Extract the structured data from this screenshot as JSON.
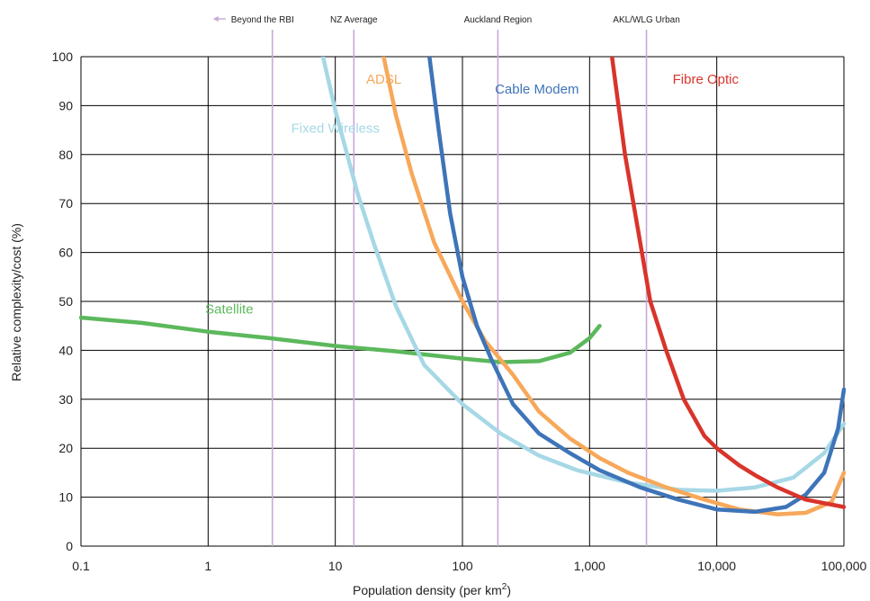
{
  "chart_data": {
    "type": "line",
    "title": "",
    "xlabel": "Population density (per km",
    "xlabel_superscript": "2",
    "xlabel_suffix": ")",
    "ylabel": "Relative complexity/cost (%)",
    "x_scale": "log",
    "xlim": [
      0.1,
      100000
    ],
    "ylim": [
      0,
      100
    ],
    "grid": true,
    "x_ticks": [
      {
        "value": 0.1,
        "label": "0.1"
      },
      {
        "value": 1,
        "label": "1"
      },
      {
        "value": 10,
        "label": "10"
      },
      {
        "value": 100,
        "label": "100"
      },
      {
        "value": 1000,
        "label": "1,000"
      },
      {
        "value": 10000,
        "label": "10,000"
      },
      {
        "value": 100000,
        "label": "100,000"
      }
    ],
    "y_ticks": [
      {
        "value": 0,
        "label": "0"
      },
      {
        "value": 10,
        "label": "10"
      },
      {
        "value": 20,
        "label": "20"
      },
      {
        "value": 30,
        "label": "30"
      },
      {
        "value": 40,
        "label": "40"
      },
      {
        "value": 50,
        "label": "50"
      },
      {
        "value": 60,
        "label": "60"
      },
      {
        "value": 70,
        "label": "70"
      },
      {
        "value": 80,
        "label": "80"
      },
      {
        "value": 90,
        "label": "90"
      },
      {
        "value": 100,
        "label": "100"
      }
    ],
    "reference_lines": [
      {
        "label": "Beyond the RBI",
        "x": 3.2,
        "arrow": true
      },
      {
        "label": "NZ Average",
        "x": 14
      },
      {
        "label": "Auckland Region",
        "x": 190
      },
      {
        "label": "AKL/WLG Urban",
        "x": 2800
      }
    ],
    "reference_line_color": "#c8a9d8",
    "series": [
      {
        "name": "Satellite",
        "color": "#5cb85c",
        "label_at": {
          "x": 0.95,
          "y": 47.5
        },
        "points": [
          [
            0.1,
            46.7
          ],
          [
            0.3,
            45.6
          ],
          [
            1,
            43.8
          ],
          [
            3,
            42.5
          ],
          [
            10,
            40.9
          ],
          [
            30,
            39.8
          ],
          [
            100,
            38.3
          ],
          [
            200,
            37.6
          ],
          [
            400,
            37.8
          ],
          [
            700,
            39.5
          ],
          [
            1000,
            42.5
          ],
          [
            1200,
            45
          ]
        ]
      },
      {
        "name": "Fixed Wireless",
        "color": "#a6d8e6",
        "label_at": {
          "x": 4.5,
          "y": 84.5
        },
        "points": [
          [
            8,
            100
          ],
          [
            10,
            89
          ],
          [
            15,
            72
          ],
          [
            20,
            62
          ],
          [
            30,
            49
          ],
          [
            50,
            37
          ],
          [
            100,
            29
          ],
          [
            200,
            23
          ],
          [
            400,
            18.5
          ],
          [
            800,
            15.5
          ],
          [
            2000,
            13
          ],
          [
            5000,
            11.5
          ],
          [
            10000,
            11.3
          ],
          [
            20000,
            12
          ],
          [
            40000,
            14
          ],
          [
            70000,
            19
          ],
          [
            100000,
            25
          ]
        ]
      },
      {
        "name": "ADSL",
        "color": "#f7a85a",
        "label_at": {
          "x": 17.5,
          "y": 94.5
        },
        "points": [
          [
            24,
            100
          ],
          [
            30,
            88
          ],
          [
            40,
            76
          ],
          [
            60,
            62
          ],
          [
            100,
            50
          ],
          [
            150,
            42
          ],
          [
            250,
            35
          ],
          [
            400,
            27.5
          ],
          [
            700,
            22
          ],
          [
            1200,
            18
          ],
          [
            2000,
            15
          ],
          [
            4000,
            12
          ],
          [
            8000,
            9.5
          ],
          [
            15000,
            7.5
          ],
          [
            30000,
            6.5
          ],
          [
            50000,
            6.8
          ],
          [
            80000,
            9
          ],
          [
            100000,
            15
          ]
        ]
      },
      {
        "name": "Cable Modem",
        "color": "#3e74b8",
        "label_at": {
          "x": 180,
          "y": 92.5
        },
        "points": [
          [
            55,
            100
          ],
          [
            65,
            85
          ],
          [
            80,
            68
          ],
          [
            100,
            55
          ],
          [
            130,
            45
          ],
          [
            170,
            38
          ],
          [
            250,
            29
          ],
          [
            400,
            23
          ],
          [
            700,
            19
          ],
          [
            1200,
            15.5
          ],
          [
            2500,
            12
          ],
          [
            5000,
            9.5
          ],
          [
            10000,
            7.5
          ],
          [
            20000,
            7
          ],
          [
            35000,
            8
          ],
          [
            50000,
            10.5
          ],
          [
            70000,
            15
          ],
          [
            90000,
            24
          ],
          [
            100000,
            32
          ]
        ]
      },
      {
        "name": "Fibre Optic",
        "color": "#d9342b",
        "label_at": {
          "x": 4500,
          "y": 94.5
        },
        "points": [
          [
            1500,
            100
          ],
          [
            1900,
            80
          ],
          [
            2500,
            62
          ],
          [
            3000,
            50
          ],
          [
            4000,
            40
          ],
          [
            5500,
            30
          ],
          [
            8000,
            22.5
          ],
          [
            10000,
            20
          ],
          [
            15000,
            16.5
          ],
          [
            20000,
            14.5
          ],
          [
            30000,
            12
          ],
          [
            50000,
            9.5
          ],
          [
            100000,
            8
          ]
        ]
      }
    ]
  }
}
